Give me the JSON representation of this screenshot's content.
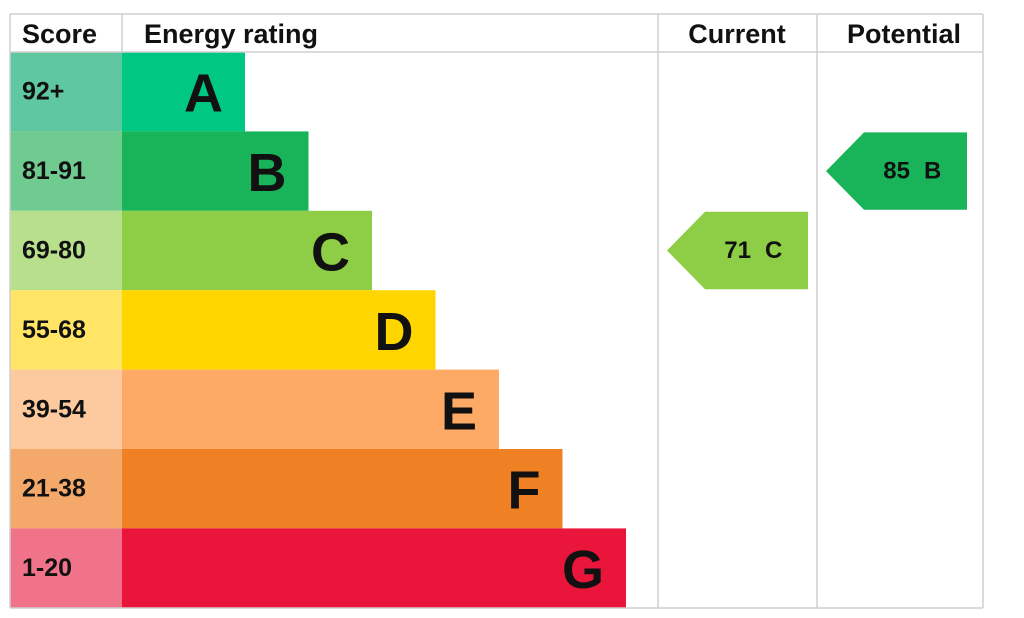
{
  "header": {
    "score": "Score",
    "rating": "Energy rating",
    "current": "Current",
    "potential": "Potential"
  },
  "bands": [
    {
      "score": "92+",
      "letter": "A",
      "color": "#00c781",
      "score_color": "#5fc8a0"
    },
    {
      "score": "81-91",
      "letter": "B",
      "color": "#19b459",
      "score_color": "#6fcb8f"
    },
    {
      "score": "69-80",
      "letter": "C",
      "color": "#8dce46",
      "score_color": "#b8e08c"
    },
    {
      "score": "55-68",
      "letter": "D",
      "color": "#ffd500",
      "score_color": "#ffe466"
    },
    {
      "score": "39-54",
      "letter": "E",
      "color": "#fcaa65",
      "score_color": "#fdc99e"
    },
    {
      "score": "21-38",
      "letter": "F",
      "color": "#ef8023",
      "score_color": "#f4a96b"
    },
    {
      "score": "1-20",
      "letter": "G",
      "color": "#e9153b",
      "score_color": "#f07389"
    }
  ],
  "current": {
    "value": 71,
    "letter": "C"
  },
  "potential": {
    "value": 85,
    "letter": "B"
  }
}
